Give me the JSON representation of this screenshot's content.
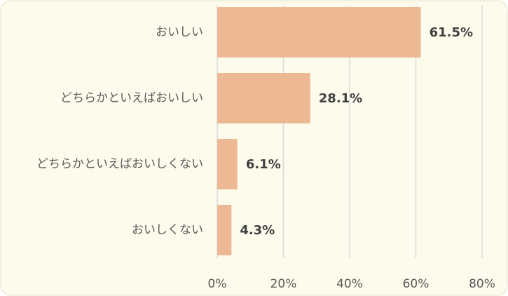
{
  "chart_data": {
    "type": "bar",
    "orientation": "horizontal",
    "categories": [
      "おいしい",
      "どちらかといえばおいしい",
      "どちらかといえばおいしくない",
      "おいしくない"
    ],
    "values": [
      61.5,
      28.1,
      6.1,
      4.3
    ],
    "value_labels": [
      "61.5%",
      "28.1%",
      "6.1%",
      "4.3%"
    ],
    "color": "#edb995",
    "xlim": [
      0,
      80
    ],
    "xticks": [
      {
        "value": 0,
        "label": "0%"
      },
      {
        "value": 20,
        "label": "20%"
      },
      {
        "value": 40,
        "label": "40%"
      },
      {
        "value": 60,
        "label": "60%"
      },
      {
        "value": 80,
        "label": "80%"
      }
    ],
    "grid": true
  }
}
